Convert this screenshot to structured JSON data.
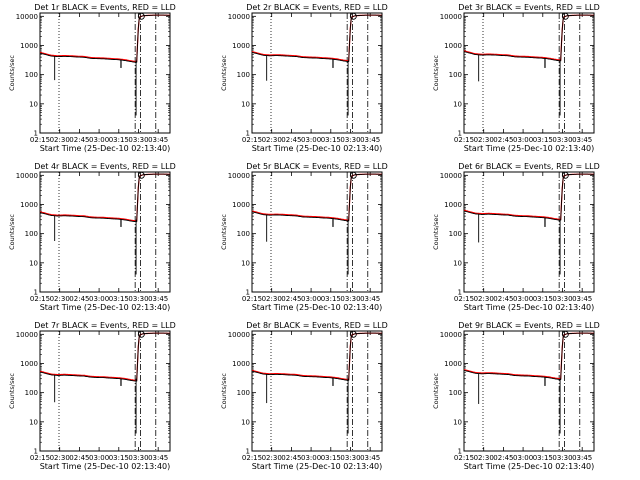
{
  "chart_data": [
    {
      "type": "line",
      "title": "Det 1r BLACK = Events, RED = LLD"
    },
    {
      "type": "line",
      "title": "Det 2r BLACK = Events, RED = LLD"
    },
    {
      "type": "line",
      "title": "Det 3r BLACK = Events, RED = LLD"
    },
    {
      "type": "line",
      "title": "Det 4r BLACK = Events, RED = LLD"
    },
    {
      "type": "line",
      "title": "Det 5r BLACK = Events, RED = LLD"
    },
    {
      "type": "line",
      "title": "Det 6r BLACK = Events, RED = LLD"
    },
    {
      "type": "line",
      "title": "Det 7r BLACK = Events, RED = LLD"
    },
    {
      "type": "line",
      "title": "Det 8r BLACK = Events, RED = LLD"
    },
    {
      "type": "line",
      "title": "Det 9r BLACK = Events, RED = LLD"
    }
  ],
  "common": {
    "xlabel": "Start Time (25-Dec-10 02:13:40)",
    "ylabel": "Counts/sec",
    "x_tick_labels": [
      "02:15",
      "02:30",
      "02:45",
      "03:00",
      "03:15",
      "03:30",
      "03:45"
    ],
    "x_tick_minutes": [
      1.33,
      16.33,
      31.33,
      46.33,
      61.33,
      76.33,
      91.33
    ],
    "xlim_minutes": [
      1.33,
      100.33
    ],
    "y_tick_labels": [
      "1",
      "10",
      "100",
      "1000",
      "10000"
    ],
    "y_tick_values": [
      1,
      10,
      100,
      1000,
      10000
    ],
    "ylim": [
      1,
      13000
    ],
    "y_scale": "log",
    "vline_dotted_minutes": 15.8,
    "vline_dashed_minutes": [
      73.8,
      77.8,
      89.5
    ],
    "series": [
      {
        "name": "Events",
        "color": "#000000"
      },
      {
        "name": "LLD",
        "color": "#ff0000"
      }
    ],
    "profile": {
      "x": [
        1.33,
        5,
        10,
        15,
        20,
        25,
        30,
        35,
        40,
        45,
        50,
        55,
        60,
        63,
        65,
        67,
        70,
        73,
        75,
        76,
        77,
        80,
        85,
        90,
        95,
        100.33
      ],
      "y": [
        620,
        560,
        490,
        470,
        480,
        470,
        455,
        445,
        410,
        400,
        395,
        380,
        370,
        360,
        350,
        340,
        320,
        305,
        300,
        3000,
        9500,
        10500,
        10800,
        11000,
        11000,
        10800
      ]
    }
  }
}
